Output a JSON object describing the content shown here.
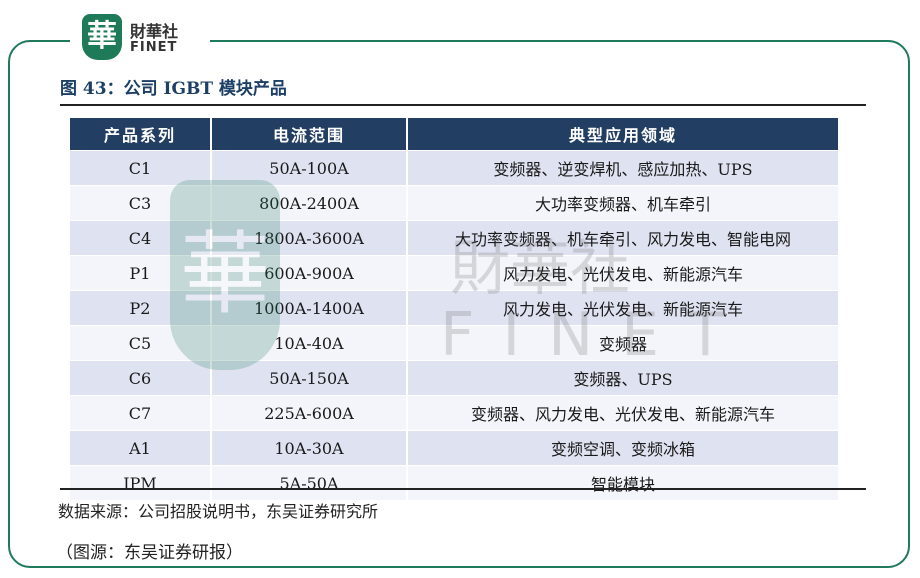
{
  "logo": {
    "mark": "華",
    "name_cn": "財華社",
    "name_en": "FINET"
  },
  "figure_title": "图 43：公司 IGBT 模块产品",
  "table": {
    "headers": [
      "产品系列",
      "电流范围",
      "典型应用领域"
    ],
    "rows": [
      [
        "C1",
        "50A-100A",
        "变频器、逆变焊机、感应加热、UPS"
      ],
      [
        "C3",
        "800A-2400A",
        "大功率变频器、机车牵引"
      ],
      [
        "C4",
        "1800A-3600A",
        "大功率变频器、机车牵引、风力发电、智能电网"
      ],
      [
        "P1",
        "600A-900A",
        "风力发电、光伏发电、新能源汽车"
      ],
      [
        "P2",
        "1000A-1400A",
        "风力发电、光伏发电、新能源汽车"
      ],
      [
        "C5",
        "10A-40A",
        "变频器"
      ],
      [
        "C6",
        "50A-150A",
        "变频器、UPS"
      ],
      [
        "C7",
        "225A-600A",
        "变频器、风力发电、光伏发电、新能源汽车"
      ],
      [
        "A1",
        "10A-30A",
        "变频空调、变频冰箱"
      ],
      [
        "IPM",
        "5A-50A",
        "智能模块"
      ]
    ]
  },
  "watermark": {
    "mark": "華",
    "name_cn": "財華社",
    "name_en": "FINET"
  },
  "source": "数据来源：公司招股说明书，东吴证券研究所",
  "credit": "（图源：东吴证券研报）",
  "colors": {
    "frame": "#1f7a5a",
    "header_bg": "#223e63",
    "row_even": "#dfe3f1",
    "row_odd": "#f4f5fb",
    "title": "#1c3f66"
  }
}
